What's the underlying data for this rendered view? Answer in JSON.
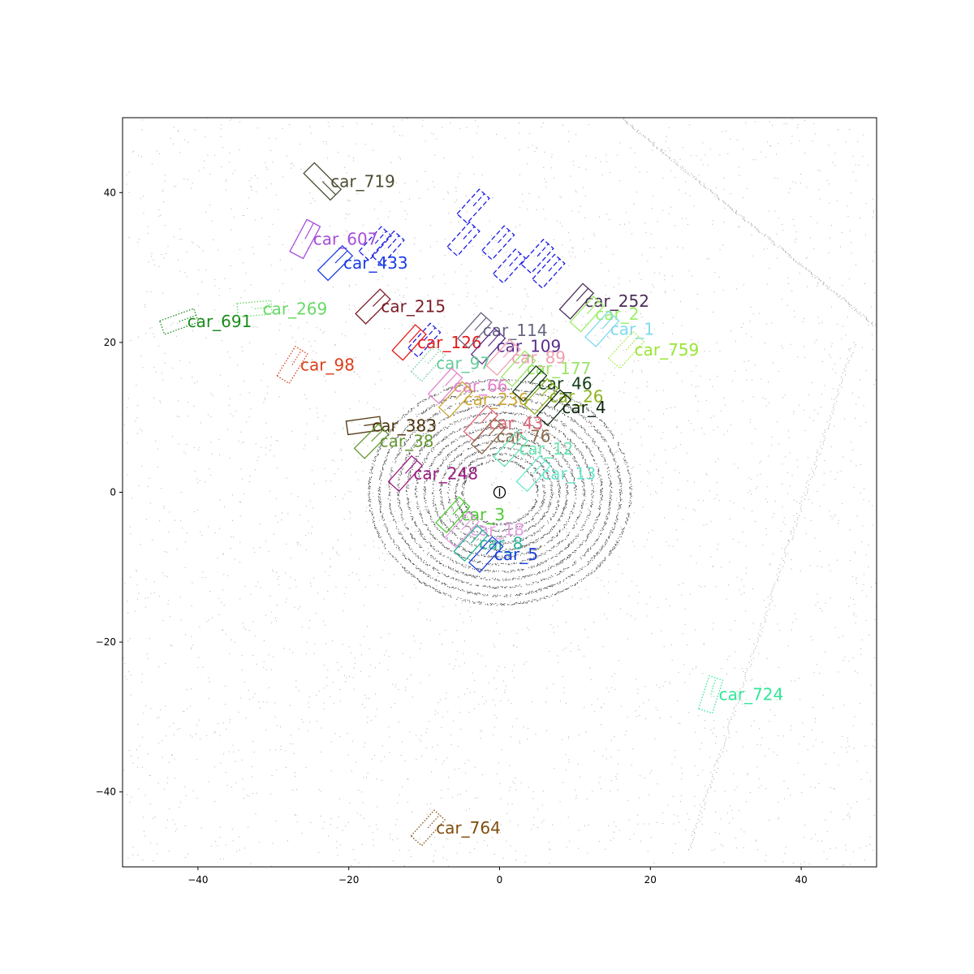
{
  "chart_data": {
    "type": "scatter",
    "title": "",
    "xlabel": "",
    "ylabel": "",
    "xlim": [
      -50,
      50
    ],
    "ylim": [
      -50,
      50
    ],
    "grid": false,
    "x_ticks": [
      -40,
      -20,
      0,
      20,
      40
    ],
    "y_ticks": [
      -40,
      -20,
      0,
      20,
      40
    ],
    "x_tick_labels": [
      "−40",
      "−20",
      "0",
      "20",
      "40"
    ],
    "y_tick_labels": [
      "−40",
      "−20",
      "0",
      "20",
      "40"
    ],
    "ego_vehicle": {
      "x": 0,
      "y": 0,
      "marker": "circle"
    },
    "boxes": [
      {
        "label": "car_719",
        "x": -23.5,
        "y": 41.5,
        "length": 5.0,
        "width": 2.0,
        "angle_deg": -45,
        "style": "solid",
        "color": "#4d4d33"
      },
      {
        "label": "car_607",
        "x": -25.8,
        "y": 33.8,
        "length": 4.8,
        "width": 2.0,
        "angle_deg": 62,
        "style": "solid",
        "color": "#a64dd9"
      },
      {
        "label": "car_433",
        "x": -21.8,
        "y": 30.6,
        "length": 4.6,
        "width": 1.9,
        "angle_deg": 45,
        "style": "solid",
        "color": "#1a3de6"
      },
      {
        "label": "car_691",
        "x": -42.5,
        "y": 22.8,
        "length": 4.8,
        "width": 1.9,
        "angle_deg": 20,
        "style": "dotted",
        "color": "#1a8c1a"
      },
      {
        "label": "car_269",
        "x": -32.5,
        "y": 24.5,
        "length": 4.5,
        "width": 1.8,
        "angle_deg": 5,
        "style": "dotted",
        "color": "#66d966"
      },
      {
        "label": "car_215",
        "x": -16.8,
        "y": 24.8,
        "length": 4.6,
        "width": 1.9,
        "angle_deg": 45,
        "style": "solid",
        "color": "#7a1a26"
      },
      {
        "label": "car_98",
        "x": -27.5,
        "y": 17.0,
        "length": 4.6,
        "width": 1.9,
        "angle_deg": 58,
        "style": "dotted",
        "color": "#d9401a"
      },
      {
        "label": "car_126",
        "x": -12.0,
        "y": 20.0,
        "length": 4.6,
        "width": 1.9,
        "angle_deg": 48,
        "style": "solid",
        "color": "#e61a1a"
      },
      {
        "label": "car_114",
        "x": -3.3,
        "y": 21.6,
        "length": 4.6,
        "width": 1.9,
        "angle_deg": 48,
        "style": "solid",
        "color": "#666680"
      },
      {
        "label": "car_109",
        "x": -1.5,
        "y": 19.5,
        "length": 4.6,
        "width": 1.9,
        "angle_deg": 48,
        "style": "solid",
        "color": "#5a2d8c"
      },
      {
        "label": "car_97",
        "x": -9.5,
        "y": 17.2,
        "length": 4.6,
        "width": 1.9,
        "angle_deg": 48,
        "style": "dotted",
        "color": "#66cc99"
      },
      {
        "label": "car_89",
        "x": 0.5,
        "y": 18.0,
        "length": 4.6,
        "width": 1.9,
        "angle_deg": 48,
        "style": "solid",
        "color": "#f0a0b0"
      },
      {
        "label": "car_177",
        "x": 2.5,
        "y": 16.5,
        "length": 4.6,
        "width": 1.9,
        "angle_deg": 48,
        "style": "solid",
        "color": "#99e666"
      },
      {
        "label": "car_66",
        "x": -7.2,
        "y": 14.2,
        "length": 4.6,
        "width": 1.9,
        "angle_deg": 48,
        "style": "solid",
        "color": "#e680cc"
      },
      {
        "label": "car_236",
        "x": -5.8,
        "y": 12.4,
        "length": 4.6,
        "width": 1.9,
        "angle_deg": 48,
        "style": "solid",
        "color": "#cca633"
      },
      {
        "label": "car_46",
        "x": 4.0,
        "y": 14.5,
        "length": 4.6,
        "width": 1.9,
        "angle_deg": 48,
        "style": "solid",
        "color": "#14401a"
      },
      {
        "label": "car_26",
        "x": 5.5,
        "y": 12.8,
        "length": 4.6,
        "width": 1.9,
        "angle_deg": 48,
        "style": "solid",
        "color": "#8cb31a"
      },
      {
        "label": "car_4",
        "x": 7.2,
        "y": 11.3,
        "length": 4.6,
        "width": 1.9,
        "angle_deg": 48,
        "style": "solid",
        "color": "#0d260d"
      },
      {
        "label": "car_252",
        "x": 10.2,
        "y": 25.5,
        "length": 4.6,
        "width": 1.9,
        "angle_deg": 48,
        "style": "solid",
        "color": "#4d2d59"
      },
      {
        "label": "car_2",
        "x": 11.6,
        "y": 23.8,
        "length": 4.6,
        "width": 1.9,
        "angle_deg": 48,
        "style": "solid",
        "color": "#99f066"
      },
      {
        "label": "car_1",
        "x": 13.6,
        "y": 21.8,
        "length": 4.6,
        "width": 1.9,
        "angle_deg": 48,
        "style": "solid",
        "color": "#80d9f0"
      },
      {
        "label": "car_759",
        "x": 16.8,
        "y": 19.0,
        "length": 4.8,
        "width": 2.0,
        "angle_deg": 48,
        "style": "dotted",
        "color": "#99e633"
      },
      {
        "label": "car_383",
        "x": -18.0,
        "y": 8.9,
        "length": 4.5,
        "width": 1.8,
        "angle_deg": 8,
        "style": "solid",
        "color": "#4d330d"
      },
      {
        "label": "car_38",
        "x": -17.0,
        "y": 6.8,
        "length": 4.5,
        "width": 1.9,
        "angle_deg": 45,
        "style": "solid",
        "color": "#669933"
      },
      {
        "label": "car_43",
        "x": -2.5,
        "y": 9.2,
        "length": 4.6,
        "width": 1.9,
        "angle_deg": 48,
        "style": "solid",
        "color": "#e0667a"
      },
      {
        "label": "car_76",
        "x": -1.5,
        "y": 7.5,
        "length": 4.6,
        "width": 1.9,
        "angle_deg": 48,
        "style": "solid",
        "color": "#8c6b4d"
      },
      {
        "label": "car_12",
        "x": 1.5,
        "y": 5.8,
        "length": 4.6,
        "width": 1.9,
        "angle_deg": 48,
        "style": "solid",
        "color": "#66e6b3"
      },
      {
        "label": "car_13",
        "x": 4.5,
        "y": 2.5,
        "length": 4.6,
        "width": 1.9,
        "angle_deg": 48,
        "style": "solid",
        "color": "#66e6cc"
      },
      {
        "label": "car_248",
        "x": -12.5,
        "y": 2.5,
        "length": 4.6,
        "width": 1.9,
        "angle_deg": 48,
        "style": "solid",
        "color": "#991a80"
      },
      {
        "label": "car_3",
        "x": -6.2,
        "y": -3.0,
        "length": 4.6,
        "width": 1.9,
        "angle_deg": 48,
        "style": "solid",
        "color": "#4dcc33"
      },
      {
        "label": "car_18",
        "x": -5.0,
        "y": -5.0,
        "length": 4.6,
        "width": 1.9,
        "angle_deg": 48,
        "style": "solid",
        "color": "#e6a0e6"
      },
      {
        "label": "car_8",
        "x": -3.8,
        "y": -6.8,
        "length": 4.6,
        "width": 1.9,
        "angle_deg": 48,
        "style": "solid",
        "color": "#26b399"
      },
      {
        "label": "car_5",
        "x": -1.8,
        "y": -8.3,
        "length": 4.6,
        "width": 1.9,
        "angle_deg": 48,
        "style": "solid",
        "color": "#1a40d9"
      },
      {
        "label": "car_724",
        "x": 28.0,
        "y": -27.0,
        "length": 4.6,
        "width": 1.9,
        "angle_deg": 72,
        "style": "dotted",
        "color": "#33e699"
      },
      {
        "label": "car_764",
        "x": -9.5,
        "y": -44.8,
        "length": 4.6,
        "width": 1.9,
        "angle_deg": 48,
        "style": "dotted",
        "color": "#804d0d"
      }
    ],
    "unlabeled_boxes": [
      {
        "x": -3.5,
        "y": 38.2,
        "length": 4.4,
        "width": 1.8,
        "angle_deg": 48,
        "style": "dashed",
        "color": "#1a1ae6"
      },
      {
        "x": -4.8,
        "y": 33.8,
        "length": 4.4,
        "width": 1.8,
        "angle_deg": 48,
        "style": "dashed",
        "color": "#1a1ae6"
      },
      {
        "x": -0.2,
        "y": 33.3,
        "length": 4.4,
        "width": 1.8,
        "angle_deg": 48,
        "style": "dashed",
        "color": "#1a1ae6"
      },
      {
        "x": 1.3,
        "y": 30.2,
        "length": 4.4,
        "width": 1.8,
        "angle_deg": 48,
        "style": "dashed",
        "color": "#1a1ae6"
      },
      {
        "x": 5.0,
        "y": 31.5,
        "length": 4.4,
        "width": 1.8,
        "angle_deg": 48,
        "style": "dashed",
        "color": "#1a1ae6"
      },
      {
        "x": 6.5,
        "y": 29.5,
        "length": 4.4,
        "width": 1.8,
        "angle_deg": 48,
        "style": "dashed",
        "color": "#1a1ae6"
      },
      {
        "x": -16.5,
        "y": 33.2,
        "length": 4.4,
        "width": 1.8,
        "angle_deg": 48,
        "style": "dashed",
        "color": "#1a1ae6"
      },
      {
        "x": -14.8,
        "y": 32.6,
        "length": 4.4,
        "width": 1.8,
        "angle_deg": 48,
        "style": "dashed",
        "color": "#1a1ae6"
      },
      {
        "x": -10.0,
        "y": 20.3,
        "length": 4.4,
        "width": 1.8,
        "angle_deg": 48,
        "style": "dashed",
        "color": "#1a1ae6"
      }
    ]
  }
}
